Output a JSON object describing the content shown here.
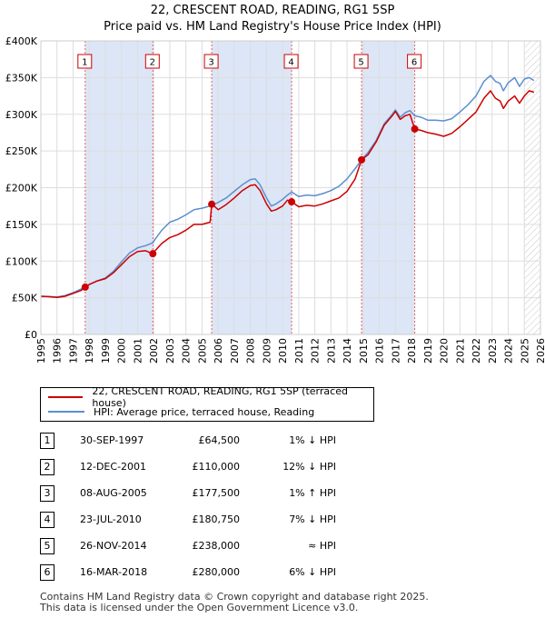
{
  "chart_data": {
    "type": "line",
    "title": "22, CRESCENT ROAD, READING, RG1 5SP",
    "subtitle": "Price paid vs. HM Land Registry's House Price Index (HPI)",
    "xlim": [
      1995,
      2026
    ],
    "ylim": [
      0,
      400000
    ],
    "y_ticks": [
      0,
      50000,
      100000,
      150000,
      200000,
      250000,
      300000,
      350000,
      400000
    ],
    "y_tick_labels": [
      "£0",
      "£50K",
      "£100K",
      "£150K",
      "£200K",
      "£250K",
      "£300K",
      "£350K",
      "£400K"
    ],
    "x_ticks": [
      1995,
      1996,
      1997,
      1998,
      1999,
      2000,
      2001,
      2002,
      2003,
      2004,
      2005,
      2006,
      2007,
      2008,
      2009,
      2010,
      2011,
      2012,
      2013,
      2014,
      2015,
      2016,
      2017,
      2018,
      2019,
      2020,
      2021,
      2022,
      2023,
      2024,
      2025,
      2026
    ],
    "x_tick_labels": [
      "1995",
      "1996",
      "1997",
      "1998",
      "1999",
      "2000",
      "2001",
      "2002",
      "2003",
      "2004",
      "2005",
      "2006",
      "2007",
      "2008",
      "2009",
      "2010",
      "2011",
      "2012",
      "2013",
      "2014",
      "2015",
      "2016",
      "2017",
      "2018",
      "2019",
      "2020",
      "2021",
      "2022",
      "2023",
      "2024",
      "2025",
      "2026"
    ],
    "series": [
      {
        "name": "22, CRESCENT ROAD, READING, RG1 5SP (terraced house)",
        "color": "#cc0000",
        "points": [
          [
            1995.0,
            52000
          ],
          [
            1995.5,
            51500
          ],
          [
            1996.0,
            50500
          ],
          [
            1996.5,
            52000
          ],
          [
            1997.0,
            56000
          ],
          [
            1997.5,
            60000
          ],
          [
            1997.75,
            64500
          ],
          [
            1998.0,
            68000
          ],
          [
            1998.5,
            73000
          ],
          [
            1999.0,
            76000
          ],
          [
            1999.5,
            84000
          ],
          [
            2000.0,
            95000
          ],
          [
            2000.5,
            106000
          ],
          [
            2001.0,
            113000
          ],
          [
            2001.5,
            114000
          ],
          [
            2001.95,
            110000
          ],
          [
            2002.0,
            112000
          ],
          [
            2002.5,
            124000
          ],
          [
            2003.0,
            132000
          ],
          [
            2003.5,
            136000
          ],
          [
            2004.0,
            142000
          ],
          [
            2004.5,
            150000
          ],
          [
            2005.0,
            150000
          ],
          [
            2005.5,
            153000
          ],
          [
            2005.6,
            177500
          ],
          [
            2005.8,
            174000
          ],
          [
            2006.0,
            170000
          ],
          [
            2006.5,
            177000
          ],
          [
            2007.0,
            186000
          ],
          [
            2007.5,
            196000
          ],
          [
            2008.0,
            203000
          ],
          [
            2008.3,
            204000
          ],
          [
            2008.6,
            196000
          ],
          [
            2009.0,
            178000
          ],
          [
            2009.3,
            168000
          ],
          [
            2009.6,
            170000
          ],
          [
            2010.0,
            175000
          ],
          [
            2010.3,
            183000
          ],
          [
            2010.56,
            180750
          ],
          [
            2011.0,
            174000
          ],
          [
            2011.5,
            176000
          ],
          [
            2012.0,
            175000
          ],
          [
            2012.5,
            178000
          ],
          [
            2013.0,
            182000
          ],
          [
            2013.5,
            186000
          ],
          [
            2014.0,
            195000
          ],
          [
            2014.5,
            212000
          ],
          [
            2014.9,
            238000
          ],
          [
            2015.3,
            245000
          ],
          [
            2015.8,
            262000
          ],
          [
            2016.3,
            285000
          ],
          [
            2016.8,
            298000
          ],
          [
            2017.0,
            304000
          ],
          [
            2017.3,
            293000
          ],
          [
            2017.6,
            298000
          ],
          [
            2017.9,
            300000
          ],
          [
            2018.2,
            280000
          ],
          [
            2018.6,
            278000
          ],
          [
            2019.0,
            275000
          ],
          [
            2019.5,
            273000
          ],
          [
            2020.0,
            270000
          ],
          [
            2020.5,
            274000
          ],
          [
            2021.0,
            283000
          ],
          [
            2021.5,
            293000
          ],
          [
            2022.0,
            303000
          ],
          [
            2022.5,
            322000
          ],
          [
            2022.9,
            332000
          ],
          [
            2023.2,
            322000
          ],
          [
            2023.5,
            318000
          ],
          [
            2023.7,
            308000
          ],
          [
            2024.0,
            318000
          ],
          [
            2024.4,
            325000
          ],
          [
            2024.7,
            315000
          ],
          [
            2025.0,
            325000
          ],
          [
            2025.3,
            332000
          ],
          [
            2025.6,
            330000
          ]
        ]
      },
      {
        "name": "HPI: Average price, terraced house, Reading",
        "color": "#5b8fcf",
        "points": [
          [
            1995.0,
            52000
          ],
          [
            1995.5,
            51500
          ],
          [
            1996.0,
            51000
          ],
          [
            1996.5,
            53000
          ],
          [
            1997.0,
            57000
          ],
          [
            1997.5,
            62000
          ],
          [
            1997.75,
            65200
          ],
          [
            1998.0,
            68000
          ],
          [
            1998.5,
            73000
          ],
          [
            1999.0,
            77000
          ],
          [
            1999.5,
            86000
          ],
          [
            2000.0,
            99000
          ],
          [
            2000.5,
            111000
          ],
          [
            2001.0,
            118000
          ],
          [
            2001.5,
            121000
          ],
          [
            2001.95,
            125000
          ],
          [
            2002.0,
            127000
          ],
          [
            2002.5,
            142000
          ],
          [
            2003.0,
            153000
          ],
          [
            2003.5,
            157000
          ],
          [
            2004.0,
            163000
          ],
          [
            2004.5,
            170000
          ],
          [
            2005.0,
            172000
          ],
          [
            2005.6,
            175700
          ],
          [
            2006.0,
            180000
          ],
          [
            2006.5,
            186000
          ],
          [
            2007.0,
            195000
          ],
          [
            2007.5,
            204000
          ],
          [
            2008.0,
            211000
          ],
          [
            2008.3,
            212000
          ],
          [
            2008.6,
            204000
          ],
          [
            2009.0,
            186000
          ],
          [
            2009.3,
            175000
          ],
          [
            2009.6,
            178000
          ],
          [
            2010.0,
            184000
          ],
          [
            2010.3,
            190000
          ],
          [
            2010.56,
            194000
          ],
          [
            2011.0,
            188000
          ],
          [
            2011.5,
            190000
          ],
          [
            2012.0,
            189000
          ],
          [
            2012.5,
            192000
          ],
          [
            2013.0,
            196000
          ],
          [
            2013.5,
            202000
          ],
          [
            2014.0,
            212000
          ],
          [
            2014.5,
            226000
          ],
          [
            2014.9,
            238000
          ],
          [
            2015.3,
            248000
          ],
          [
            2015.8,
            264000
          ],
          [
            2016.3,
            287000
          ],
          [
            2016.8,
            300000
          ],
          [
            2017.0,
            306000
          ],
          [
            2017.3,
            296000
          ],
          [
            2017.6,
            302000
          ],
          [
            2017.9,
            305000
          ],
          [
            2018.2,
            298000
          ],
          [
            2018.6,
            296000
          ],
          [
            2019.0,
            292000
          ],
          [
            2019.5,
            292000
          ],
          [
            2020.0,
            291000
          ],
          [
            2020.5,
            294000
          ],
          [
            2021.0,
            303000
          ],
          [
            2021.5,
            313000
          ],
          [
            2022.0,
            325000
          ],
          [
            2022.5,
            345000
          ],
          [
            2022.9,
            353000
          ],
          [
            2023.2,
            345000
          ],
          [
            2023.5,
            342000
          ],
          [
            2023.7,
            332000
          ],
          [
            2024.0,
            343000
          ],
          [
            2024.4,
            350000
          ],
          [
            2024.7,
            338000
          ],
          [
            2025.0,
            348000
          ],
          [
            2025.3,
            350000
          ],
          [
            2025.6,
            346000
          ]
        ]
      }
    ],
    "sales": [
      {
        "num": "1",
        "x": 1997.75,
        "price": 64500
      },
      {
        "num": "2",
        "x": 2001.95,
        "price": 110000
      },
      {
        "num": "3",
        "x": 2005.6,
        "price": 177500
      },
      {
        "num": "4",
        "x": 2010.56,
        "price": 180750
      },
      {
        "num": "5",
        "x": 2014.9,
        "price": 238000
      },
      {
        "num": "6",
        "x": 2018.2,
        "price": 280000
      }
    ],
    "shaded_ranges": [
      [
        1997.75,
        2001.95
      ],
      [
        2005.6,
        2010.56
      ],
      [
        2014.9,
        2018.2
      ]
    ],
    "hatched_after": 2025.0,
    "grid": true
  },
  "legend": {
    "property_label": "22, CRESCENT ROAD, READING, RG1 5SP (terraced house)",
    "hpi_label": "HPI: Average price, terraced house, Reading",
    "property_color": "#cc0000",
    "hpi_color": "#5b8fcf"
  },
  "sales_table": [
    {
      "num": "1",
      "date": "30-SEP-1997",
      "price": "£64,500",
      "hpi": "1% ↓ HPI"
    },
    {
      "num": "2",
      "date": "12-DEC-2001",
      "price": "£110,000",
      "hpi": "12% ↓ HPI"
    },
    {
      "num": "3",
      "date": "08-AUG-2005",
      "price": "£177,500",
      "hpi": "1% ↑ HPI"
    },
    {
      "num": "4",
      "date": "23-JUL-2010",
      "price": "£180,750",
      "hpi": "7% ↓ HPI"
    },
    {
      "num": "5",
      "date": "26-NOV-2014",
      "price": "£238,000",
      "hpi": "≈ HPI"
    },
    {
      "num": "6",
      "date": "16-MAR-2018",
      "price": "£280,000",
      "hpi": "6% ↓ HPI"
    }
  ],
  "footer": {
    "line1": "Contains HM Land Registry data © Crown copyright and database right 2025.",
    "line2": "This data is licensed under the Open Government Licence v3.0."
  }
}
